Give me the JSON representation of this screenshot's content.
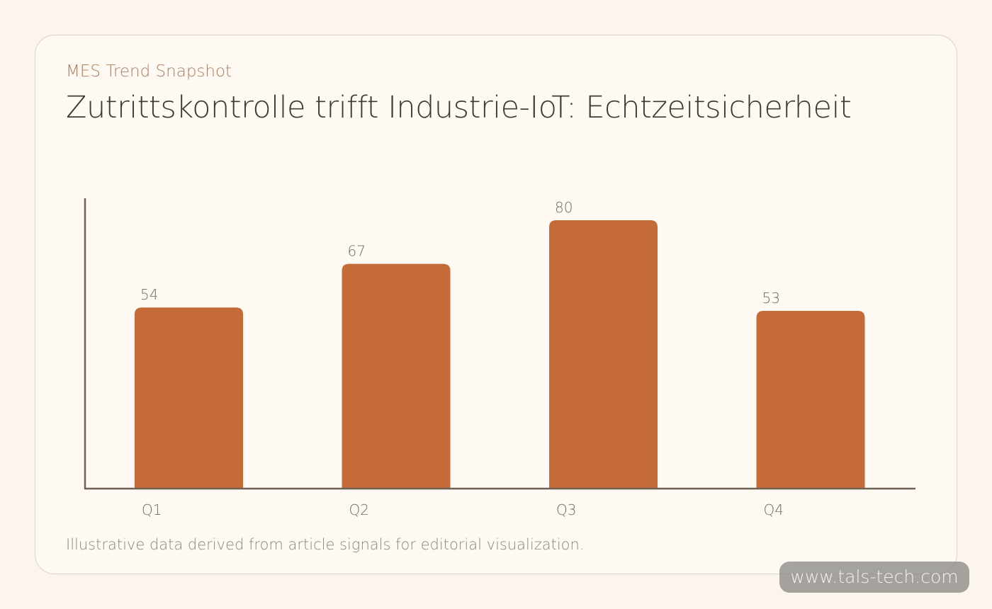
{
  "header": {
    "kicker": "MES Trend Snapshot",
    "title": "Zutrittskontrolle trifft Industrie-IoT: Echtzeitsicherheit"
  },
  "footer": {
    "note": "Illustrative data derived from article signals for editorial visualization."
  },
  "watermark": {
    "text": "www.tals-tech.com"
  },
  "colors": {
    "bar": "#c56b38",
    "axis": "#6e6255"
  },
  "chart_data": {
    "type": "bar",
    "categories": [
      "Q1",
      "Q2",
      "Q3",
      "Q4"
    ],
    "values": [
      54,
      67,
      80,
      53
    ],
    "title": "Zutrittskontrolle trifft Industrie-IoT: Echtzeitsicherheit",
    "xlabel": "",
    "ylabel": "",
    "ylim": [
      0,
      87
    ],
    "data_labels": true,
    "grid": false,
    "legend": "none"
  }
}
